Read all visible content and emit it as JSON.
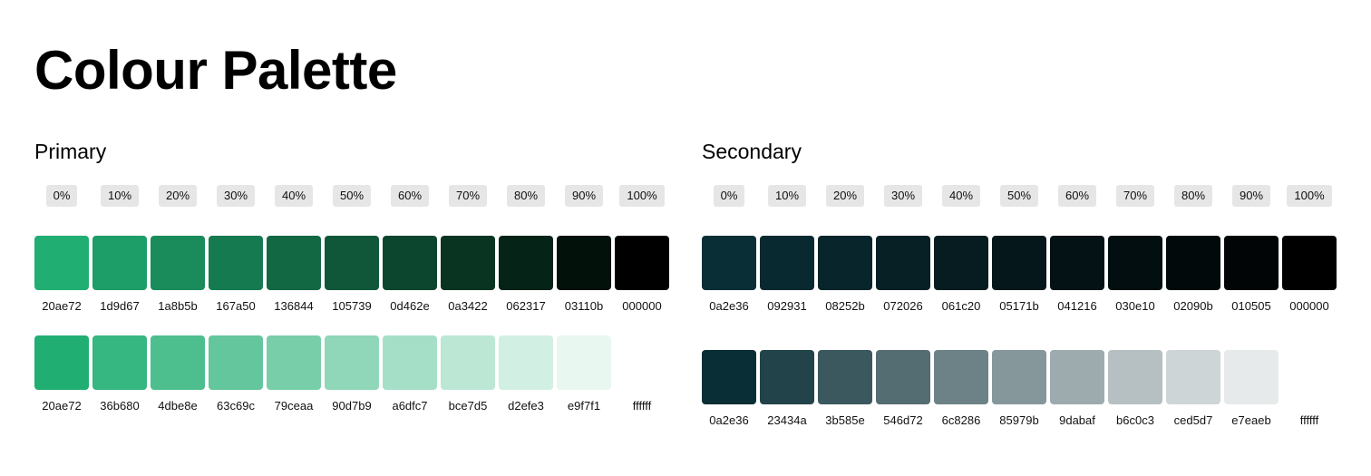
{
  "title": "Colour Palette",
  "primary": {
    "title": "Primary",
    "percents": [
      "0%",
      "10%",
      "20%",
      "30%",
      "40%",
      "50%",
      "60%",
      "70%",
      "80%",
      "90%",
      "100%"
    ],
    "shades": [
      "20ae72",
      "1d9d67",
      "1a8b5b",
      "167a50",
      "136844",
      "105739",
      "0d462e",
      "0a3422",
      "062317",
      "03110b",
      "000000"
    ],
    "tints": [
      "20ae72",
      "36b680",
      "4dbe8e",
      "63c69c",
      "79ceaa",
      "90d7b9",
      "a6dfc7",
      "bce7d5",
      "d2efe3",
      "e9f7f1",
      "ffffff"
    ]
  },
  "secondary": {
    "title": "Secondary",
    "percents": [
      "0%",
      "10%",
      "20%",
      "30%",
      "40%",
      "50%",
      "60%",
      "70%",
      "80%",
      "90%",
      "100%"
    ],
    "shades": [
      "0a2e36",
      "092931",
      "08252b",
      "072026",
      "061c20",
      "05171b",
      "041216",
      "030e10",
      "02090b",
      "010505",
      "000000"
    ],
    "tints": [
      "0a2e36",
      "23434a",
      "3b585e",
      "546d72",
      "6c8286",
      "85979b",
      "9dabaf",
      "b6c0c3",
      "ced5d7",
      "e7eaeb",
      "ffffff"
    ]
  }
}
